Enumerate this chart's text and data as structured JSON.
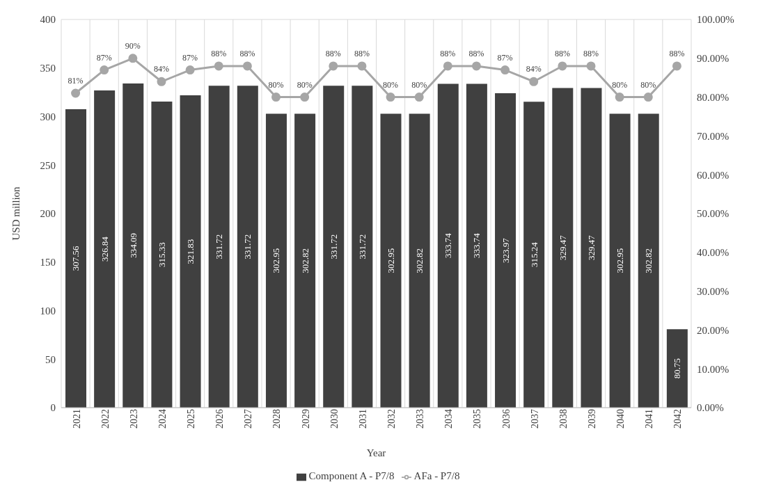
{
  "chart_data": {
    "type": "bar",
    "xlabel": "Year",
    "ylabel": "USD million",
    "categories": [
      "2021",
      "2022",
      "2023",
      "2024",
      "2025",
      "2026",
      "2027",
      "2028",
      "2029",
      "2030",
      "2031",
      "2032",
      "2033",
      "2034",
      "2035",
      "2036",
      "2037",
      "2038",
      "2039",
      "2040",
      "2041",
      "2042"
    ],
    "series": [
      {
        "name": "Component A - P7/8",
        "color": "#404040",
        "values": [
          307.56,
          326.84,
          334.09,
          315.33,
          321.83,
          331.72,
          331.72,
          302.95,
          302.82,
          331.72,
          331.72,
          302.95,
          302.82,
          333.74,
          333.74,
          323.97,
          315.24,
          329.47,
          329.47,
          302.95,
          302.82,
          80.75
        ]
      },
      {
        "name": "AFa - P7/8",
        "type": "line",
        "axis": "y2",
        "color": "#a6a6a6",
        "marker": "circle",
        "values": [
          81,
          87,
          90,
          84,
          87,
          88,
          88,
          80,
          80,
          88,
          88,
          80,
          80,
          88,
          88,
          87,
          84,
          88,
          88,
          80,
          80,
          88
        ],
        "value_labels": [
          "81%",
          "87%",
          "90%",
          "84%",
          "87%",
          "88%",
          "88%",
          "80%",
          "80%",
          "88%",
          "88%",
          "80%",
          "80%",
          "88%",
          "88%",
          "87%",
          "84%",
          "88%",
          "88%",
          "80%",
          "80%",
          "88%"
        ]
      }
    ],
    "data_labels": true,
    "ylim": [
      0,
      400
    ],
    "yticks": [
      0,
      50,
      100,
      150,
      200,
      250,
      300,
      350,
      400
    ],
    "y2lim": [
      0,
      100
    ],
    "y2ticks": [
      {
        "value": 0,
        "label": "0.00%"
      },
      {
        "value": 10,
        "label": "10.00%"
      },
      {
        "value": 20,
        "label": "20.00%"
      },
      {
        "value": 30,
        "label": "30.00%"
      },
      {
        "value": 40,
        "label": "40.00%"
      },
      {
        "value": 50,
        "label": "50.00%"
      },
      {
        "value": 60,
        "label": "60.00%"
      },
      {
        "value": 70,
        "label": "70.00%"
      },
      {
        "value": 80,
        "label": "80.00%"
      },
      {
        "value": 90,
        "label": "90.00%"
      },
      {
        "value": 100,
        "label": "100.00%"
      }
    ],
    "grid": true,
    "legend": "bottom"
  }
}
